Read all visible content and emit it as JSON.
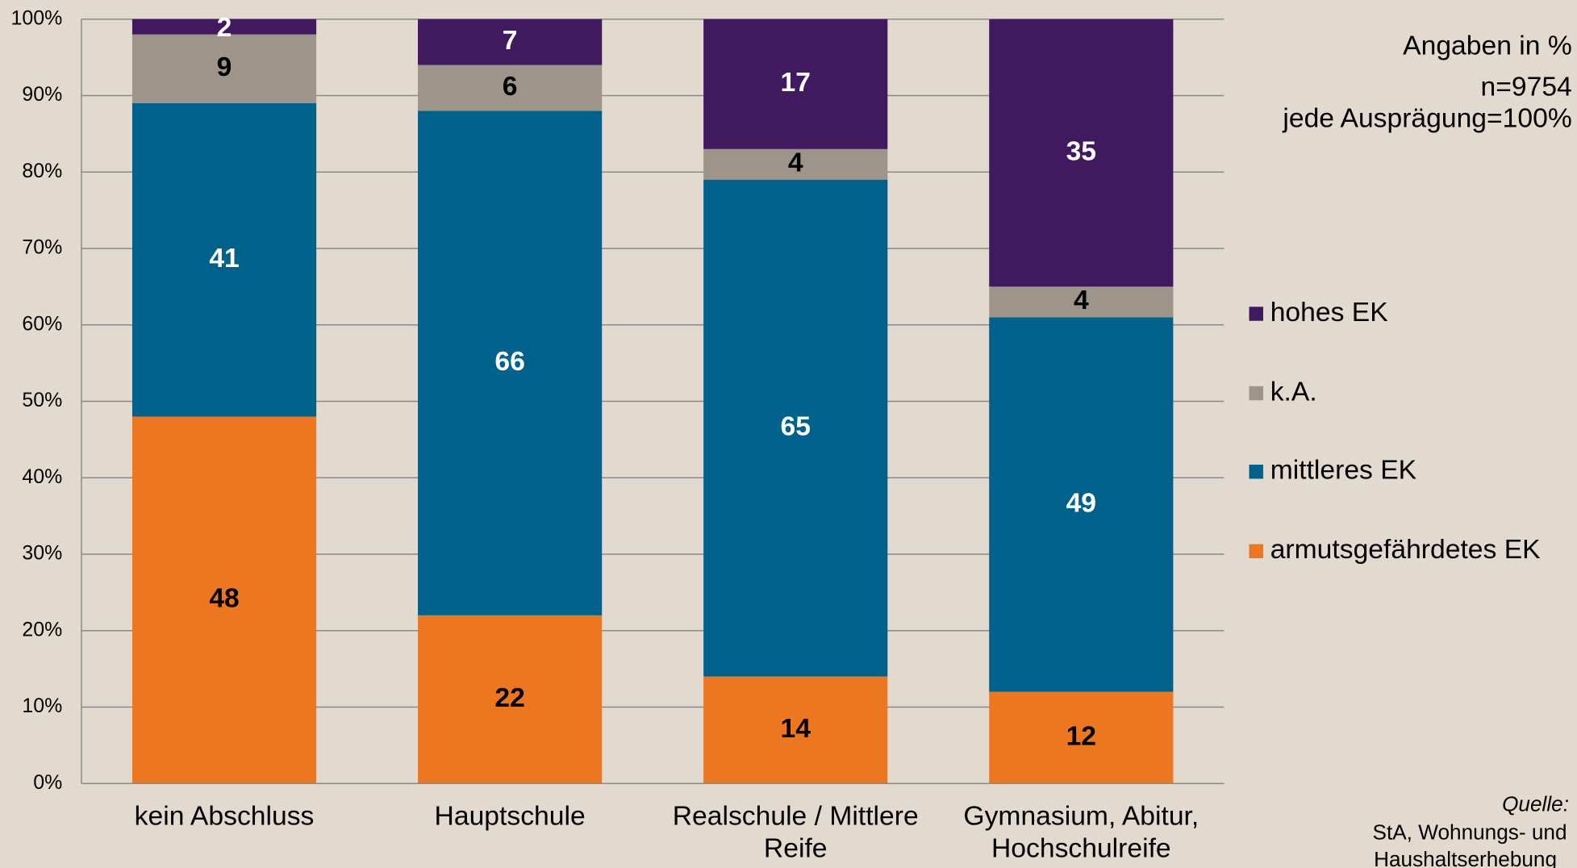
{
  "chart_data": {
    "type": "stacked_bar",
    "categories": [
      "kein Abschluss",
      "Hauptschule",
      "Realschule / Mittlere Reife",
      "Gymnasium, Abitur, Hochschulreife"
    ],
    "series": [
      {
        "name": "armutsgefährdetes EK",
        "color": "#ed7620",
        "label_color": "#000000",
        "values": [
          48,
          22,
          14,
          12
        ]
      },
      {
        "name": "mittleres EK",
        "color": "#00628b",
        "label_color": "#ffffff",
        "values": [
          41,
          66,
          65,
          49
        ]
      },
      {
        "name": "k.A.",
        "color": "#9e958a",
        "label_color": "#000000",
        "values": [
          9,
          6,
          4,
          4
        ]
      },
      {
        "name": "hohes EK",
        "color": "#41195e",
        "label_color": "#ffffff",
        "values": [
          2,
          7,
          17,
          35
        ]
      }
    ],
    "ylim": [
      0,
      100
    ],
    "yticks": [
      {
        "value": 0,
        "label": "0%"
      },
      {
        "value": 10,
        "label": "10%"
      },
      {
        "value": 20,
        "label": "20%"
      },
      {
        "value": 30,
        "label": "30%"
      },
      {
        "value": 40,
        "label": "40%"
      },
      {
        "value": 50,
        "label": "50%"
      },
      {
        "value": 60,
        "label": "60%"
      },
      {
        "value": 70,
        "label": "70%"
      },
      {
        "value": 80,
        "label": "80%"
      },
      {
        "value": 90,
        "label": "90%"
      },
      {
        "value": 100,
        "label": "100%"
      }
    ],
    "grid": true,
    "legend": "right",
    "annotations": [
      "Angaben in %",
      "n=9754",
      "jede Ausprägung=100%"
    ],
    "source": [
      "Quelle:",
      "StA, Wohnungs- und",
      "Haushaltserhebung"
    ]
  }
}
